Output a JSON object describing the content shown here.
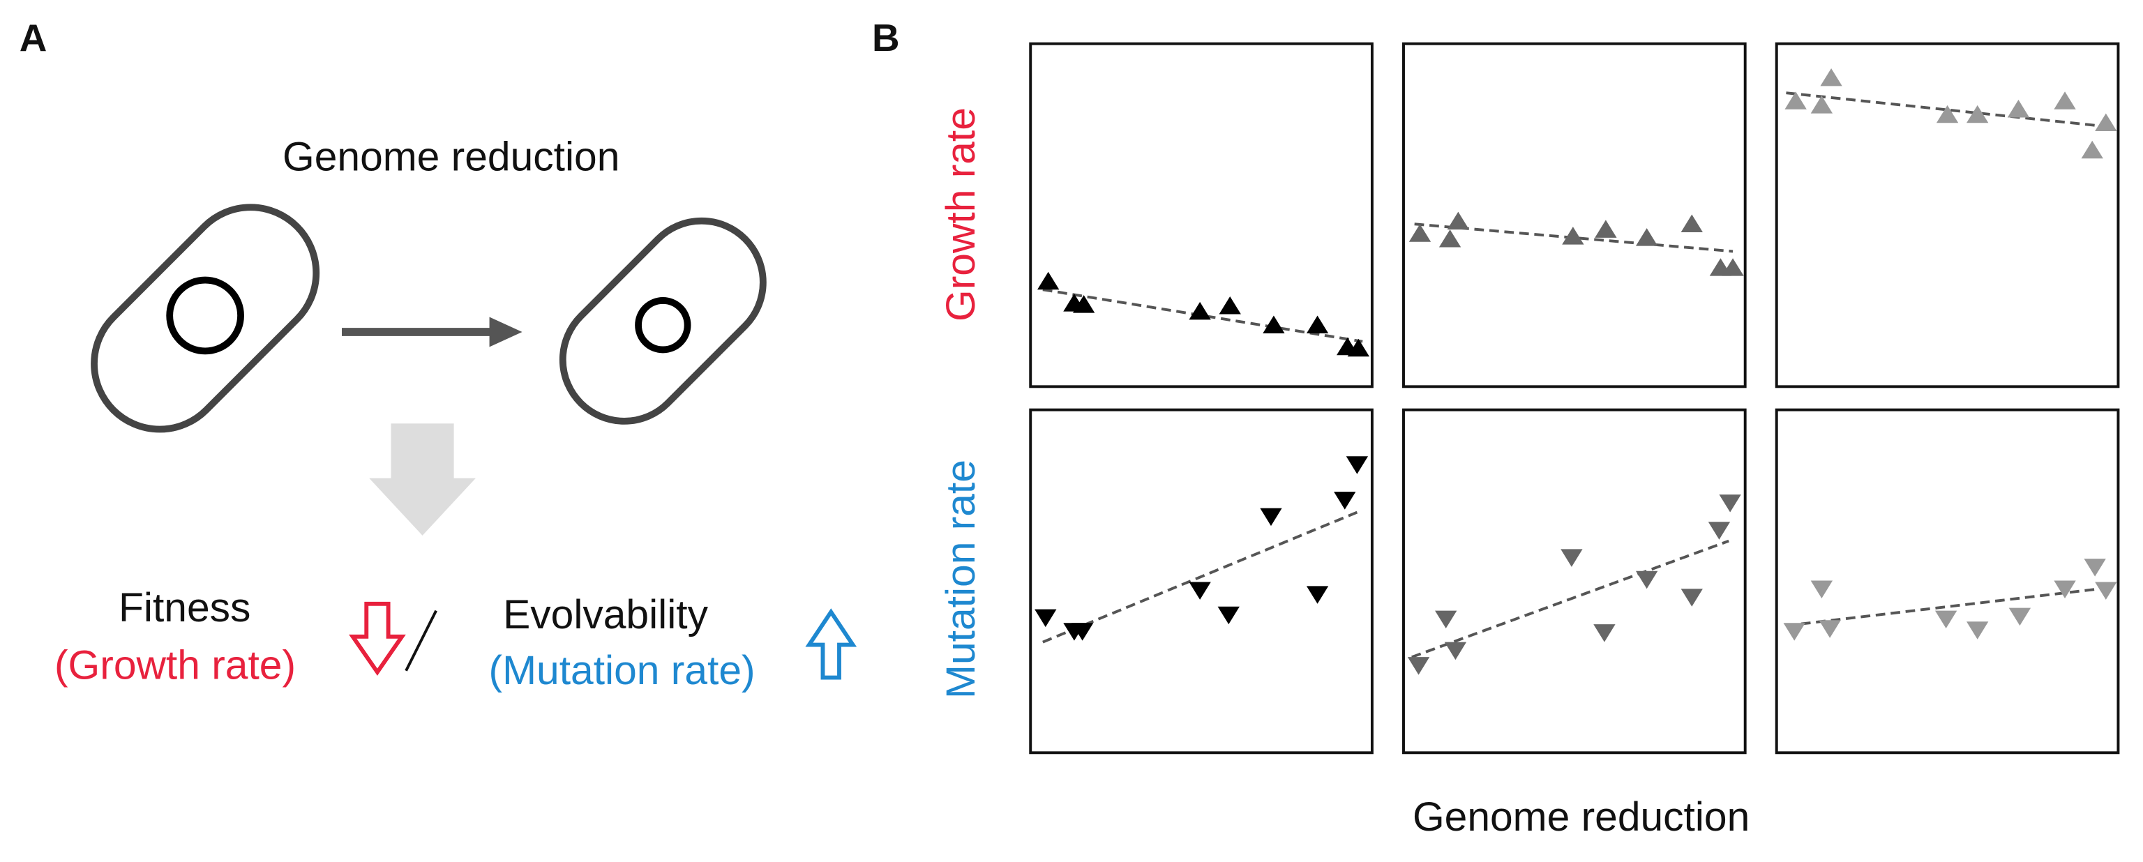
{
  "panel_a": {
    "label": "A",
    "title": "Genome reduction",
    "fitness": "Fitness",
    "fitness_measure": "(Growth rate)",
    "evolvability": "Evolvability",
    "evolvability_measure": "(Mutation rate)"
  },
  "panel_b": {
    "label": "B",
    "row_labels": [
      "Growth rate",
      "Mutation rate"
    ],
    "x_label": "Genome reduction"
  }
}
